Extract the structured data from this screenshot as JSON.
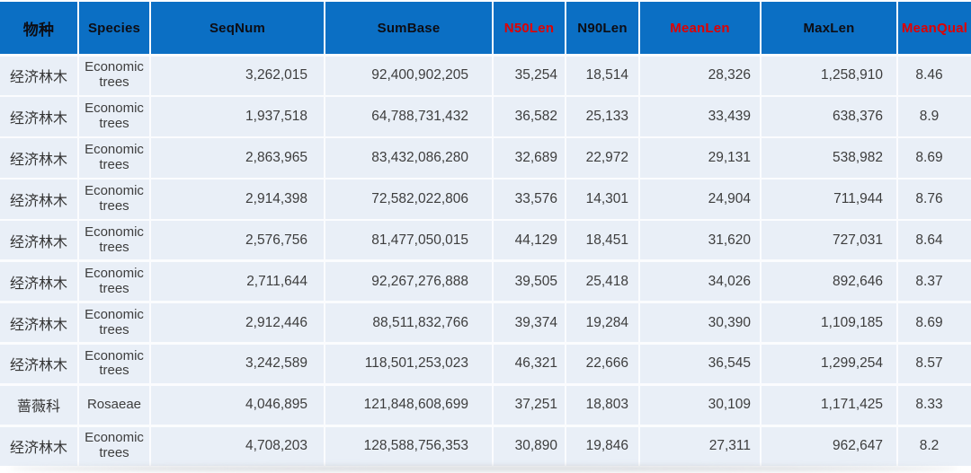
{
  "chart_data": {
    "type": "table",
    "columns": [
      {
        "key": "species_cn",
        "label": "物种",
        "red": false
      },
      {
        "key": "species_en",
        "label": "Species",
        "red": false
      },
      {
        "key": "seqnum",
        "label": "SeqNum",
        "red": false
      },
      {
        "key": "sumbase",
        "label": "SumBase",
        "red": false
      },
      {
        "key": "n50len",
        "label": "N50Len",
        "red": true
      },
      {
        "key": "n90len",
        "label": "N90Len",
        "red": false
      },
      {
        "key": "meanlen",
        "label": "MeanLen",
        "red": true
      },
      {
        "key": "maxlen",
        "label": "MaxLen",
        "red": false
      },
      {
        "key": "meanqual",
        "label": "MeanQual",
        "red": true
      }
    ],
    "rows": [
      {
        "species_cn": "经济林木",
        "species_en": "Economic trees",
        "seqnum": "3,262,015",
        "sumbase": "92,400,902,205",
        "n50len": "35,254",
        "n90len": "18,514",
        "meanlen": "28,326",
        "maxlen": "1,258,910",
        "meanqual": "8.46"
      },
      {
        "species_cn": "经济林木",
        "species_en": "Economic trees",
        "seqnum": "1,937,518",
        "sumbase": "64,788,731,432",
        "n50len": "36,582",
        "n90len": "25,133",
        "meanlen": "33,439",
        "maxlen": "638,376",
        "meanqual": "8.9"
      },
      {
        "species_cn": "经济林木",
        "species_en": "Economic trees",
        "seqnum": "2,863,965",
        "sumbase": "83,432,086,280",
        "n50len": "32,689",
        "n90len": "22,972",
        "meanlen": "29,131",
        "maxlen": "538,982",
        "meanqual": "8.69"
      },
      {
        "species_cn": "经济林木",
        "species_en": "Economic trees",
        "seqnum": "2,914,398",
        "sumbase": "72,582,022,806",
        "n50len": "33,576",
        "n90len": "14,301",
        "meanlen": "24,904",
        "maxlen": "711,944",
        "meanqual": "8.76"
      },
      {
        "species_cn": "经济林木",
        "species_en": "Economic trees",
        "seqnum": "2,576,756",
        "sumbase": "81,477,050,015",
        "n50len": "44,129",
        "n90len": "18,451",
        "meanlen": "31,620",
        "maxlen": "727,031",
        "meanqual": "8.64"
      },
      {
        "species_cn": "经济林木",
        "species_en": "Economic trees",
        "seqnum": "2,711,644",
        "sumbase": "92,267,276,888",
        "n50len": "39,505",
        "n90len": "25,418",
        "meanlen": "34,026",
        "maxlen": "892,646",
        "meanqual": "8.37"
      },
      {
        "species_cn": "经济林木",
        "species_en": "Economic trees",
        "seqnum": "2,912,446",
        "sumbase": "88,511,832,766",
        "n50len": "39,374",
        "n90len": "19,284",
        "meanlen": "30,390",
        "maxlen": "1,109,185",
        "meanqual": "8.69"
      },
      {
        "species_cn": "经济林木",
        "species_en": "Economic trees",
        "seqnum": "3,242,589",
        "sumbase": "118,501,253,023",
        "n50len": "46,321",
        "n90len": "22,666",
        "meanlen": "36,545",
        "maxlen": "1,299,254",
        "meanqual": "8.57"
      },
      {
        "species_cn": "蔷薇科",
        "species_en": "Rosaeae",
        "seqnum": "4,046,895",
        "sumbase": "121,848,608,699",
        "n50len": "37,251",
        "n90len": "18,803",
        "meanlen": "30,109",
        "maxlen": "1,171,425",
        "meanqual": "8.33"
      },
      {
        "species_cn": "经济林木",
        "species_en": "Economic trees",
        "seqnum": "4,708,203",
        "sumbase": "128,588,756,353",
        "n50len": "30,890",
        "n90len": "19,846",
        "meanlen": "27,311",
        "maxlen": "962,647",
        "meanqual": "8.2"
      }
    ]
  },
  "colors": {
    "header_bg": "#0B6FC4",
    "header_text": "#0D0D14",
    "header_red": "#E00000",
    "row_bg": "#E9EFF7",
    "row_text": "#3D3D3D",
    "grid_gap": "#FBFCFE"
  }
}
